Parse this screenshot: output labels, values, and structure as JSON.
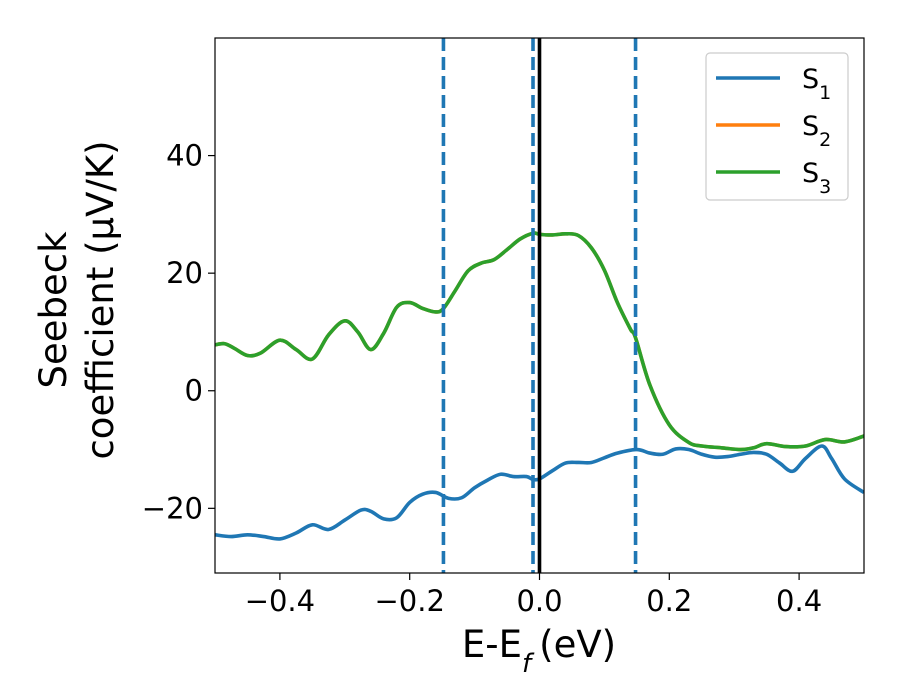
{
  "chart_data": {
    "type": "line",
    "xlabel": "E-E",
    "xlabel_sub": "f",
    "xlabel_unit": "(eV)",
    "ylabel_line1": "Seebeck",
    "ylabel_line2": "coefficient  (μV/K)",
    "xlim": [
      -0.5,
      0.5
    ],
    "ylim": [
      -31,
      60
    ],
    "grid": false,
    "legend_placement": "top-right",
    "x_ticks": [
      -0.4,
      -0.2,
      0.0,
      0.2,
      0.4
    ],
    "x_tick_labels": [
      "−0.4",
      "−0.2",
      "0.0",
      "0.2",
      "0.4"
    ],
    "y_ticks": [
      -20,
      0,
      20,
      40
    ],
    "y_tick_labels": [
      "−20",
      "0",
      "20",
      "40"
    ],
    "vlines_dashed": [
      -0.148,
      -0.01,
      0.148
    ],
    "vline_solid": 0.0,
    "vline_color": "#1f77b4",
    "series": [
      {
        "name": "S",
        "sub": "1",
        "color": "#1f77b4",
        "x": [
          -0.5,
          -0.475,
          -0.45,
          -0.425,
          -0.4,
          -0.375,
          -0.35,
          -0.325,
          -0.3,
          -0.275,
          -0.26,
          -0.24,
          -0.22,
          -0.2,
          -0.18,
          -0.16,
          -0.14,
          -0.12,
          -0.1,
          -0.08,
          -0.06,
          -0.04,
          -0.02,
          -0.01,
          0.0,
          0.02,
          0.04,
          0.06,
          0.08,
          0.1,
          0.12,
          0.15,
          0.17,
          0.19,
          0.21,
          0.23,
          0.25,
          0.27,
          0.29,
          0.31,
          0.33,
          0.35,
          0.37,
          0.39,
          0.41,
          0.435,
          0.45,
          0.47,
          0.5
        ],
        "y": [
          -24.5,
          -24.8,
          -24.5,
          -24.8,
          -25.2,
          -24.2,
          -22.8,
          -23.6,
          -22.0,
          -20.3,
          -20.5,
          -21.8,
          -21.6,
          -19.0,
          -17.6,
          -17.3,
          -18.3,
          -18.2,
          -16.5,
          -15.2,
          -14.2,
          -14.6,
          -14.6,
          -15.1,
          -15.0,
          -13.6,
          -12.3,
          -12.2,
          -12.2,
          -11.4,
          -10.6,
          -10.0,
          -10.6,
          -10.8,
          -9.9,
          -10.0,
          -10.8,
          -11.3,
          -11.2,
          -10.8,
          -10.5,
          -10.8,
          -12.3,
          -13.7,
          -11.5,
          -9.4,
          -11.5,
          -15.0,
          -17.3
        ]
      },
      {
        "name": "S",
        "sub": "2",
        "color": "#ff7f0e",
        "x": [
          -0.5,
          -0.485,
          -0.47,
          -0.45,
          -0.43,
          -0.4,
          -0.375,
          -0.35,
          -0.325,
          -0.3,
          -0.28,
          -0.26,
          -0.24,
          -0.22,
          -0.2,
          -0.18,
          -0.16,
          -0.148,
          -0.13,
          -0.11,
          -0.09,
          -0.07,
          -0.05,
          -0.03,
          -0.01,
          0.0,
          0.02,
          0.04,
          0.06,
          0.08,
          0.1,
          0.12,
          0.14,
          0.148,
          0.17,
          0.2,
          0.23,
          0.25,
          0.28,
          0.31,
          0.33,
          0.35,
          0.38,
          0.41,
          0.44,
          0.47,
          0.5
        ],
        "y": [
          7.8,
          8.0,
          7.2,
          6.0,
          6.4,
          8.6,
          7.0,
          5.4,
          9.5,
          11.9,
          10.0,
          7.0,
          9.8,
          14.2,
          15.0,
          14.0,
          13.4,
          14.0,
          17.0,
          20.4,
          21.7,
          22.3,
          24.0,
          25.8,
          26.8,
          26.6,
          26.5,
          26.7,
          26.4,
          24.3,
          20.5,
          15.0,
          10.5,
          9.0,
          1.0,
          -5.8,
          -8.8,
          -9.4,
          -9.7,
          -10.0,
          -9.7,
          -9.0,
          -9.5,
          -9.4,
          -8.3,
          -8.7,
          -7.7
        ]
      },
      {
        "name": "S",
        "sub": "3",
        "color": "#2ca02c",
        "x": [
          -0.5,
          -0.485,
          -0.47,
          -0.45,
          -0.43,
          -0.4,
          -0.375,
          -0.35,
          -0.325,
          -0.3,
          -0.28,
          -0.26,
          -0.24,
          -0.22,
          -0.2,
          -0.18,
          -0.16,
          -0.148,
          -0.13,
          -0.11,
          -0.09,
          -0.07,
          -0.05,
          -0.03,
          -0.01,
          0.0,
          0.02,
          0.04,
          0.06,
          0.08,
          0.1,
          0.12,
          0.14,
          0.148,
          0.17,
          0.2,
          0.23,
          0.25,
          0.28,
          0.31,
          0.33,
          0.35,
          0.38,
          0.41,
          0.44,
          0.47,
          0.5
        ],
        "y": [
          7.8,
          8.0,
          7.2,
          6.0,
          6.4,
          8.6,
          7.0,
          5.4,
          9.5,
          11.9,
          10.0,
          7.0,
          9.8,
          14.2,
          15.0,
          14.0,
          13.4,
          14.0,
          17.0,
          20.4,
          21.7,
          22.3,
          24.0,
          25.8,
          26.8,
          26.6,
          26.5,
          26.7,
          26.4,
          24.3,
          20.5,
          15.0,
          10.5,
          9.0,
          1.0,
          -5.8,
          -8.8,
          -9.4,
          -9.7,
          -10.0,
          -9.7,
          -9.0,
          -9.5,
          -9.4,
          -8.3,
          -8.7,
          -7.7
        ]
      }
    ]
  }
}
